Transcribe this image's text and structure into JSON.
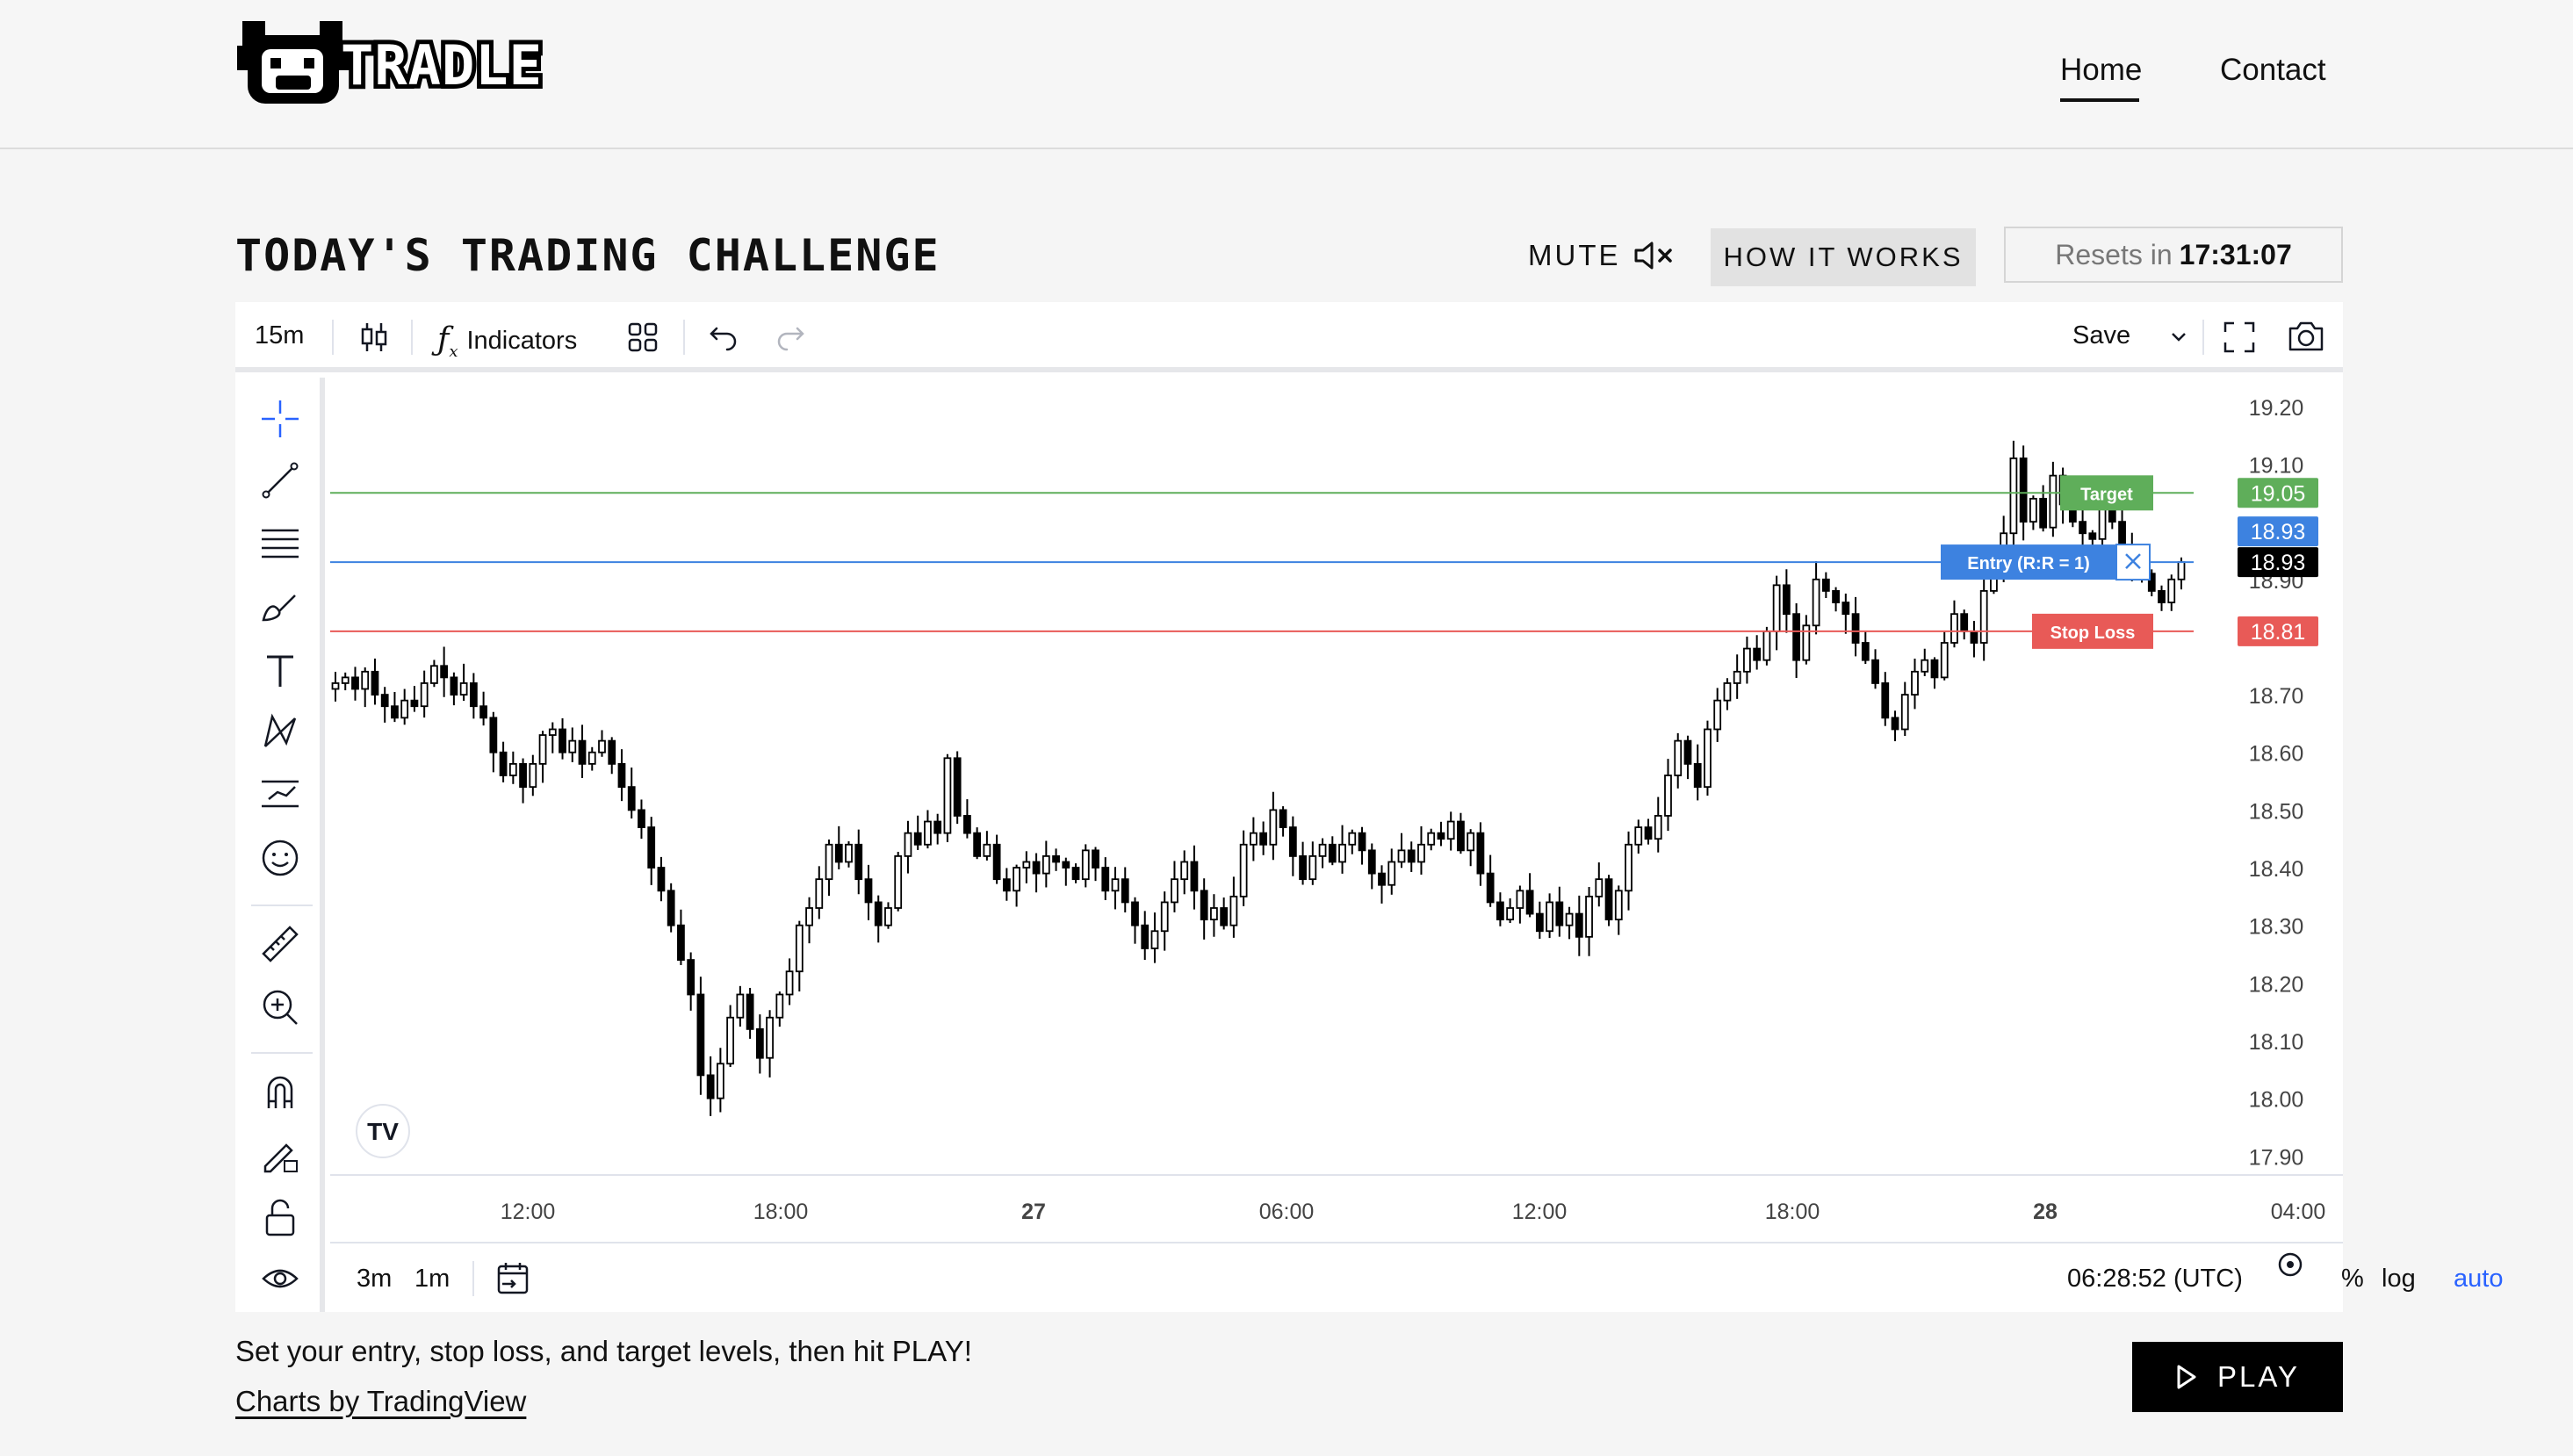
{
  "brand": {
    "name": "TRADLE"
  },
  "nav": {
    "home": "Home",
    "contact": "Contact"
  },
  "page": {
    "title": "TODAY'S TRADING CHALLENGE",
    "mute_label": "MUTE",
    "how_it_works": "HOW IT WORKS",
    "resets_label": "Resets in",
    "resets_time": "17:31:07"
  },
  "toolbar": {
    "interval": "15m",
    "indicators": "Indicators",
    "save": "Save"
  },
  "chart_bottom": {
    "range_3m": "3m",
    "range_1m": "1m",
    "clock": "06:28:52 (UTC)",
    "percent": "%",
    "log": "log",
    "auto": "auto"
  },
  "chart_data": {
    "type": "candlestick",
    "y_ticks": [
      "19.20",
      "19.10",
      "18.90",
      "18.70",
      "18.60",
      "18.50",
      "18.40",
      "18.30",
      "18.20",
      "18.10",
      "18.00",
      "17.90"
    ],
    "ylim": [
      17.87,
      19.25
    ],
    "x_ticks": [
      {
        "label": "12:00",
        "bold": false
      },
      {
        "label": "18:00",
        "bold": false
      },
      {
        "label": "27",
        "bold": true
      },
      {
        "label": "06:00",
        "bold": false
      },
      {
        "label": "12:00",
        "bold": false
      },
      {
        "label": "18:00",
        "bold": false
      },
      {
        "label": "28",
        "bold": true
      },
      {
        "label": "04:00",
        "bold": false
      }
    ],
    "closes": [
      18.72,
      18.73,
      18.71,
      18.74,
      18.7,
      18.68,
      18.66,
      18.69,
      18.68,
      18.72,
      18.75,
      18.73,
      18.7,
      18.72,
      18.68,
      18.66,
      18.6,
      18.56,
      18.58,
      18.54,
      18.58,
      18.63,
      18.64,
      18.6,
      18.62,
      18.58,
      18.6,
      18.62,
      18.58,
      18.54,
      18.5,
      18.47,
      18.4,
      18.36,
      18.3,
      18.24,
      18.18,
      18.04,
      18.0,
      18.06,
      18.14,
      18.18,
      18.12,
      18.07,
      18.14,
      18.18,
      18.22,
      18.3,
      18.33,
      18.38,
      18.44,
      18.41,
      18.44,
      18.38,
      18.34,
      18.3,
      18.33,
      18.42,
      18.46,
      18.44,
      18.48,
      18.46,
      18.59,
      18.49,
      18.46,
      18.42,
      18.44,
      18.38,
      18.36,
      18.4,
      18.41,
      18.39,
      18.42,
      18.41,
      18.4,
      18.38,
      18.43,
      18.4,
      18.36,
      18.38,
      18.34,
      18.3,
      18.26,
      18.29,
      18.34,
      18.38,
      18.41,
      18.36,
      18.31,
      18.33,
      18.3,
      18.35,
      18.44,
      18.46,
      18.44,
      18.5,
      18.47,
      18.42,
      18.38,
      18.42,
      18.44,
      18.41,
      18.44,
      18.46,
      18.43,
      18.39,
      18.37,
      18.41,
      18.43,
      18.41,
      18.44,
      18.46,
      18.45,
      18.48,
      18.43,
      18.46,
      18.39,
      18.34,
      18.31,
      18.33,
      18.36,
      18.32,
      18.29,
      18.34,
      18.3,
      18.32,
      18.28,
      18.35,
      18.38,
      18.31,
      18.36,
      18.44,
      18.47,
      18.45,
      18.49,
      18.56,
      18.62,
      18.58,
      18.54,
      18.64,
      18.69,
      18.72,
      18.74,
      18.78,
      18.76,
      18.81,
      18.89,
      18.84,
      18.76,
      18.82,
      18.9,
      18.88,
      18.86,
      18.84,
      18.79,
      18.76,
      18.72,
      18.66,
      18.64,
      18.7,
      18.74,
      18.76,
      18.73,
      18.79,
      18.84,
      18.81,
      18.79,
      18.88,
      18.93,
      18.98,
      19.11,
      19.0,
      19.04,
      18.99,
      19.08,
      19.03,
      19.0,
      18.98,
      18.97,
      19.04,
      19.0,
      18.96,
      18.93,
      18.91,
      18.88,
      18.86,
      18.9,
      18.93
    ],
    "levels": {
      "target": {
        "label": "Target",
        "value": "19.05",
        "color": "#5fae5a"
      },
      "entry": {
        "label": "Entry (R:R = 1)",
        "value": "18.93",
        "color": "#3d82e0"
      },
      "stop": {
        "label": "Stop Loss",
        "value": "18.81",
        "color": "#e85a57"
      },
      "last_price": "18.93"
    }
  },
  "footer": {
    "instruction": "Set your entry, stop loss, and target levels, then hit PLAY!",
    "credit": "Charts by TradingView",
    "play": "PLAY"
  }
}
